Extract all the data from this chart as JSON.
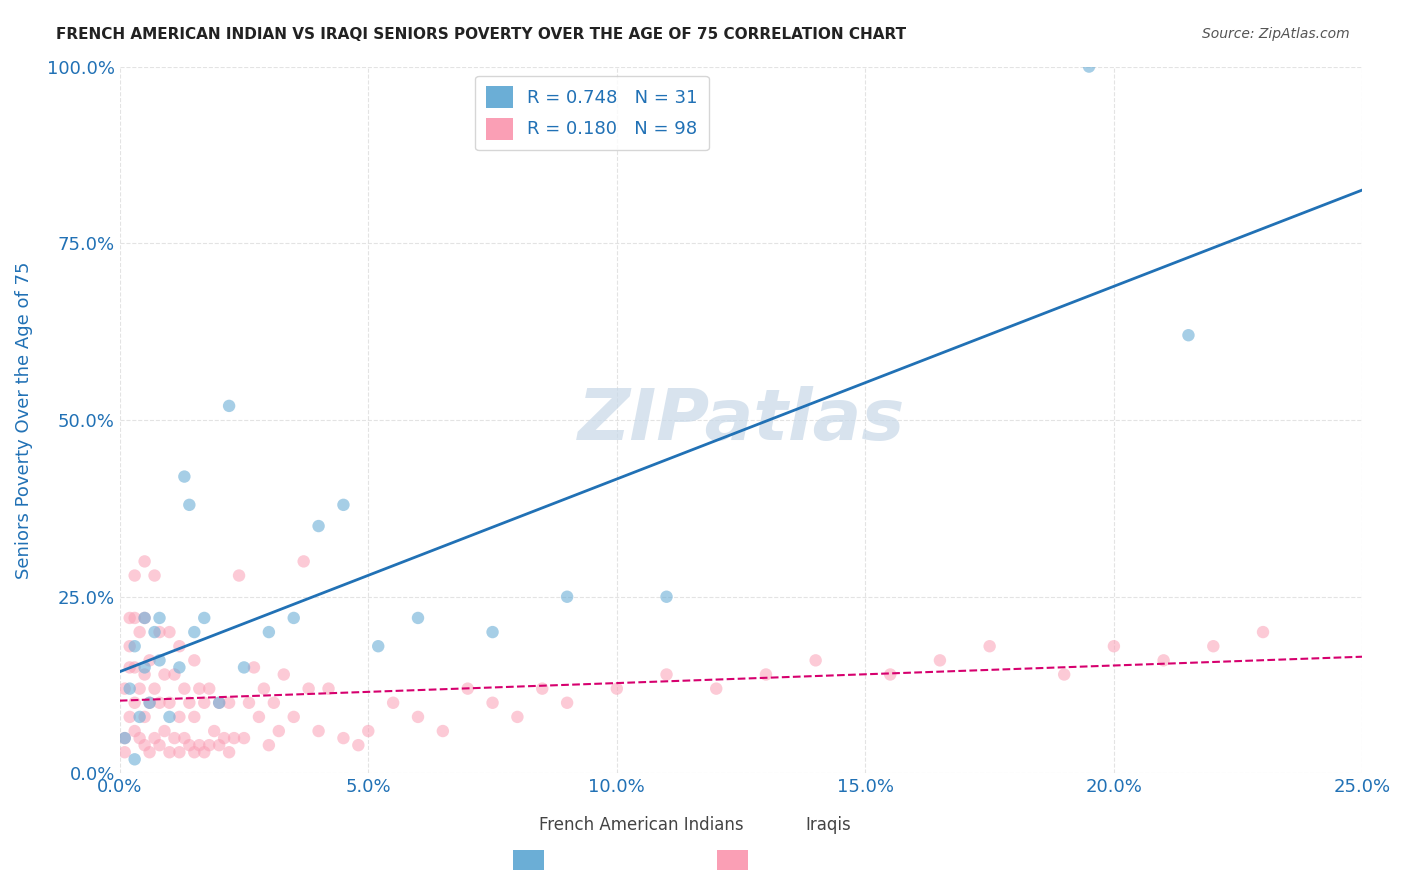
{
  "title": "FRENCH AMERICAN INDIAN VS IRAQI SENIORS POVERTY OVER THE AGE OF 75 CORRELATION CHART",
  "source": "Source: ZipAtlas.com",
  "ylabel": "Seniors Poverty Over the Age of 75",
  "xlabel_ticks": [
    "0.0%",
    "5.0%",
    "10.0%",
    "15.0%",
    "20.0%",
    "25.0%"
  ],
  "xlabel_vals": [
    0.0,
    0.05,
    0.1,
    0.15,
    0.2,
    0.25
  ],
  "ylabel_ticks": [
    "0.0%",
    "25.0%",
    "50.0%",
    "75.0%",
    "100.0%"
  ],
  "ylabel_vals": [
    0.0,
    0.25,
    0.5,
    0.75,
    1.0
  ],
  "xlim": [
    0.0,
    0.25
  ],
  "ylim": [
    0.0,
    1.0
  ],
  "blue_color": "#6baed6",
  "pink_color": "#fa9fb5",
  "blue_line_color": "#2171b5",
  "pink_line_color": "#d6006e",
  "R_blue": 0.748,
  "N_blue": 31,
  "R_pink": 0.18,
  "N_pink": 98,
  "watermark": "ZIPatlas",
  "watermark_color": "#c8d8e8",
  "legend_label_blue": "French American Indians",
  "legend_label_pink": "Iraqis",
  "blue_scatter_x": [
    0.001,
    0.002,
    0.003,
    0.003,
    0.004,
    0.005,
    0.005,
    0.006,
    0.007,
    0.008,
    0.008,
    0.01,
    0.012,
    0.013,
    0.014,
    0.015,
    0.017,
    0.02,
    0.022,
    0.025,
    0.03,
    0.035,
    0.04,
    0.045,
    0.052,
    0.06,
    0.075,
    0.09,
    0.11,
    0.195,
    0.215
  ],
  "blue_scatter_y": [
    0.05,
    0.12,
    0.02,
    0.18,
    0.08,
    0.22,
    0.15,
    0.1,
    0.2,
    0.16,
    0.22,
    0.08,
    0.15,
    0.42,
    0.38,
    0.2,
    0.22,
    0.1,
    0.52,
    0.15,
    0.2,
    0.22,
    0.35,
    0.38,
    0.18,
    0.22,
    0.2,
    0.25,
    0.25,
    1.0,
    0.62
  ],
  "pink_scatter_x": [
    0.001,
    0.001,
    0.001,
    0.002,
    0.002,
    0.002,
    0.002,
    0.003,
    0.003,
    0.003,
    0.003,
    0.003,
    0.004,
    0.004,
    0.004,
    0.005,
    0.005,
    0.005,
    0.005,
    0.005,
    0.006,
    0.006,
    0.006,
    0.007,
    0.007,
    0.007,
    0.008,
    0.008,
    0.008,
    0.009,
    0.009,
    0.01,
    0.01,
    0.01,
    0.011,
    0.011,
    0.012,
    0.012,
    0.012,
    0.013,
    0.013,
    0.014,
    0.014,
    0.015,
    0.015,
    0.015,
    0.016,
    0.016,
    0.017,
    0.017,
    0.018,
    0.018,
    0.019,
    0.02,
    0.02,
    0.021,
    0.022,
    0.022,
    0.023,
    0.024,
    0.025,
    0.026,
    0.027,
    0.028,
    0.029,
    0.03,
    0.031,
    0.032,
    0.033,
    0.035,
    0.037,
    0.038,
    0.04,
    0.042,
    0.045,
    0.048,
    0.05,
    0.055,
    0.06,
    0.065,
    0.07,
    0.075,
    0.08,
    0.085,
    0.09,
    0.1,
    0.11,
    0.12,
    0.13,
    0.14,
    0.155,
    0.165,
    0.175,
    0.19,
    0.2,
    0.21,
    0.22,
    0.23
  ],
  "pink_scatter_y": [
    0.05,
    0.12,
    0.03,
    0.08,
    0.22,
    0.15,
    0.18,
    0.06,
    0.1,
    0.15,
    0.22,
    0.28,
    0.05,
    0.12,
    0.2,
    0.04,
    0.08,
    0.14,
    0.22,
    0.3,
    0.03,
    0.1,
    0.16,
    0.05,
    0.12,
    0.28,
    0.04,
    0.1,
    0.2,
    0.06,
    0.14,
    0.03,
    0.1,
    0.2,
    0.05,
    0.14,
    0.03,
    0.08,
    0.18,
    0.05,
    0.12,
    0.04,
    0.1,
    0.03,
    0.08,
    0.16,
    0.04,
    0.12,
    0.03,
    0.1,
    0.04,
    0.12,
    0.06,
    0.04,
    0.1,
    0.05,
    0.03,
    0.1,
    0.05,
    0.28,
    0.05,
    0.1,
    0.15,
    0.08,
    0.12,
    0.04,
    0.1,
    0.06,
    0.14,
    0.08,
    0.3,
    0.12,
    0.06,
    0.12,
    0.05,
    0.04,
    0.06,
    0.1,
    0.08,
    0.06,
    0.12,
    0.1,
    0.08,
    0.12,
    0.1,
    0.12,
    0.14,
    0.12,
    0.14,
    0.16,
    0.14,
    0.16,
    0.18,
    0.14,
    0.18,
    0.16,
    0.18,
    0.2
  ],
  "bg_color": "#ffffff",
  "grid_color": "#dddddd",
  "title_color": "#222222",
  "axis_label_color": "#2171b5",
  "tick_color": "#2171b5",
  "marker_size": 80
}
